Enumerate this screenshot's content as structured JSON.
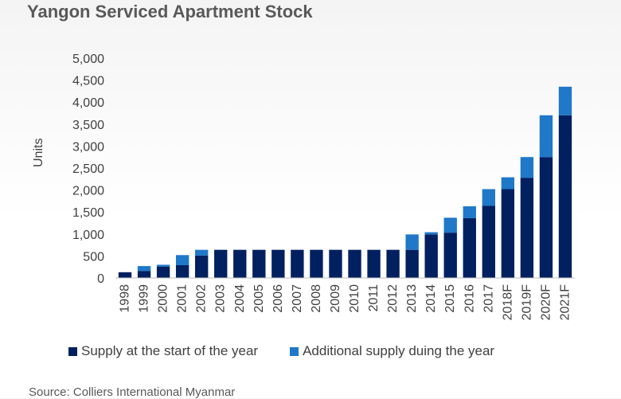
{
  "chart_data": {
    "type": "bar",
    "stacked": true,
    "title": "Yangon Serviced Apartment Stock",
    "ylabel": "Units",
    "xlabel": "",
    "ylim": [
      0,
      5000
    ],
    "yticks": [
      0,
      500,
      1000,
      1500,
      2000,
      2500,
      3000,
      3500,
      4000,
      4500,
      5000
    ],
    "ytick_labels": [
      "0",
      "500",
      "1,000",
      "1,500",
      "2,000",
      "2,500",
      "3,000",
      "3,500",
      "4,000",
      "4,500",
      "5,000"
    ],
    "grid": false,
    "legend_position": "bottom",
    "categories": [
      "1998",
      "1999",
      "2000",
      "2001",
      "2002",
      "2003",
      "2004",
      "2005",
      "2006",
      "2007",
      "2008",
      "2009",
      "2010",
      "2011",
      "2012",
      "2013",
      "2014",
      "2015",
      "2016",
      "2017",
      "2018F",
      "2019F",
      "2020F",
      "2021F"
    ],
    "series": [
      {
        "name": "Supply at the start of the year",
        "color": "#002060",
        "values": [
          130,
          160,
          260,
          290,
          510,
          640,
          640,
          640,
          640,
          640,
          640,
          640,
          640,
          640,
          640,
          640,
          990,
          1030,
          1360,
          1640,
          2020,
          2280,
          2750,
          3700
        ]
      },
      {
        "name": "Additional supply duing the year",
        "color": "#1f78c8",
        "values": [
          0,
          110,
          40,
          230,
          130,
          0,
          0,
          0,
          0,
          0,
          0,
          0,
          0,
          0,
          0,
          350,
          50,
          340,
          270,
          380,
          270,
          470,
          950,
          650
        ]
      }
    ]
  },
  "source": "Source: Colliers International Myanmar"
}
